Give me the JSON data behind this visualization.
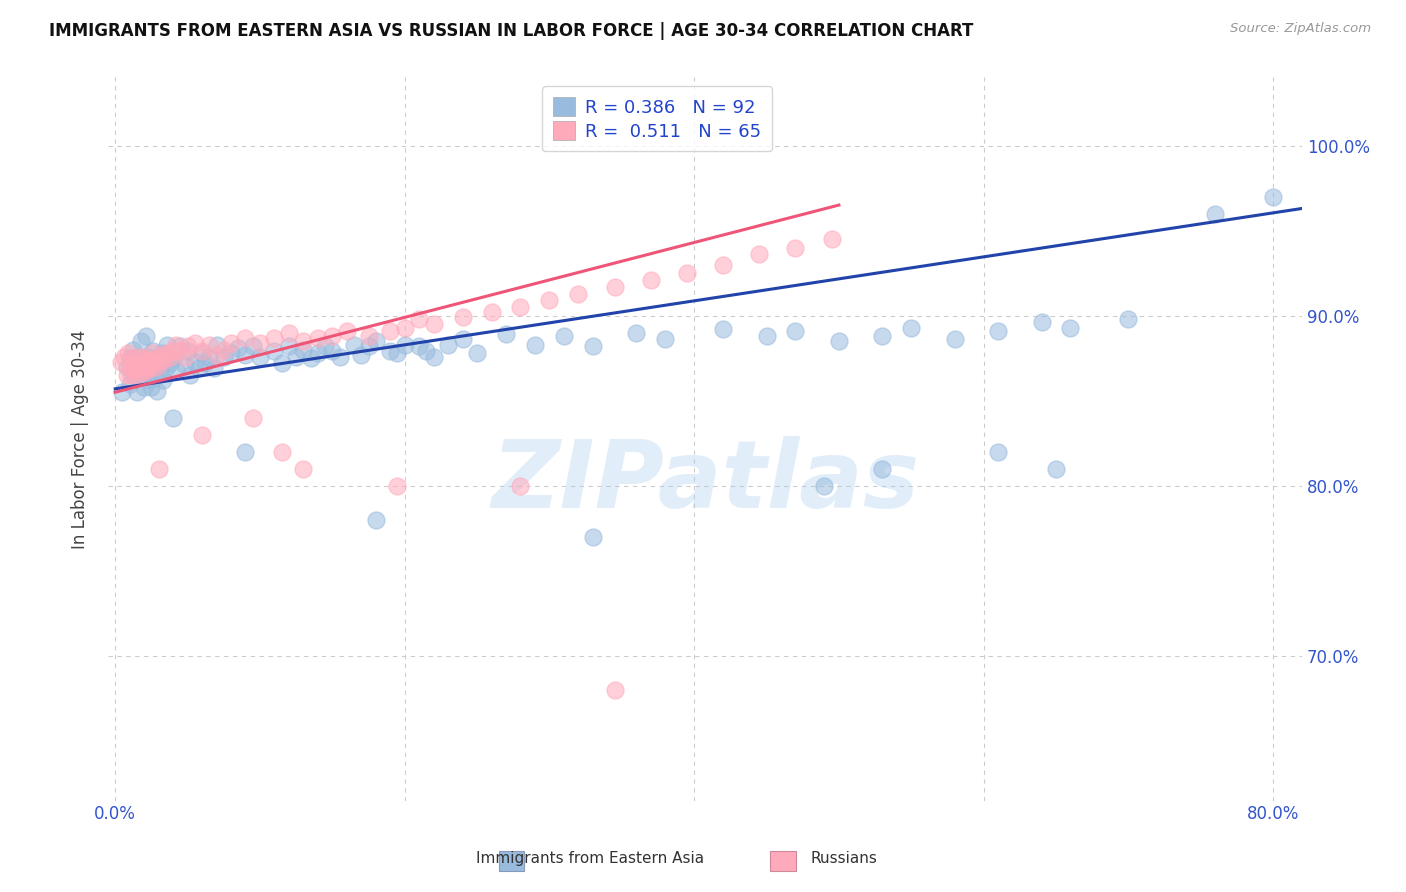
{
  "title": "IMMIGRANTS FROM EASTERN ASIA VS RUSSIAN IN LABOR FORCE | AGE 30-34 CORRELATION CHART",
  "source": "Source: ZipAtlas.com",
  "ylabel": "In Labor Force | Age 30-34",
  "xlim": [
    -0.005,
    0.82
  ],
  "ylim": [
    0.615,
    1.04
  ],
  "xtick_positions": [
    0.0,
    0.2,
    0.4,
    0.6,
    0.8
  ],
  "xtick_labels": [
    "0.0%",
    "",
    "",
    "",
    "80.0%"
  ],
  "ytick_positions": [
    0.7,
    0.8,
    0.9,
    1.0
  ],
  "ytick_labels": [
    "70.0%",
    "80.0%",
    "90.0%",
    "100.0%"
  ],
  "blue_R": 0.386,
  "blue_N": 92,
  "pink_R": 0.511,
  "pink_N": 65,
  "blue_color": "#99BBDD",
  "pink_color": "#FFAABB",
  "blue_line_color": "#2244AA",
  "pink_line_color": "#EE5577",
  "watermark": "ZIPatlas",
  "legend_blue_label": "Immigrants from Eastern Asia",
  "legend_pink_label": "Russians",
  "blue_x": [
    0.005,
    0.008,
    0.01,
    0.01,
    0.012,
    0.013,
    0.015,
    0.015,
    0.016,
    0.018,
    0.019,
    0.02,
    0.02,
    0.021,
    0.022,
    0.023,
    0.024,
    0.025,
    0.025,
    0.026,
    0.027,
    0.028,
    0.029,
    0.03,
    0.031,
    0.032,
    0.033,
    0.034,
    0.035,
    0.036,
    0.038,
    0.04,
    0.042,
    0.045,
    0.048,
    0.05,
    0.052,
    0.055,
    0.058,
    0.06,
    0.062,
    0.065,
    0.068,
    0.07,
    0.075,
    0.08,
    0.085,
    0.09,
    0.095,
    0.1,
    0.11,
    0.115,
    0.12,
    0.125,
    0.13,
    0.135,
    0.14,
    0.145,
    0.15,
    0.155,
    0.165,
    0.17,
    0.175,
    0.18,
    0.19,
    0.195,
    0.2,
    0.21,
    0.215,
    0.22,
    0.23,
    0.24,
    0.25,
    0.27,
    0.29,
    0.31,
    0.33,
    0.36,
    0.38,
    0.42,
    0.45,
    0.47,
    0.5,
    0.53,
    0.55,
    0.58,
    0.61,
    0.64,
    0.66,
    0.7,
    0.76,
    0.8
  ],
  "blue_y": [
    0.855,
    0.87,
    0.875,
    0.86,
    0.88,
    0.865,
    0.87,
    0.855,
    0.875,
    0.885,
    0.868,
    0.872,
    0.858,
    0.888,
    0.865,
    0.876,
    0.862,
    0.871,
    0.858,
    0.879,
    0.864,
    0.87,
    0.856,
    0.872,
    0.868,
    0.878,
    0.862,
    0.874,
    0.869,
    0.883,
    0.872,
    0.875,
    0.868,
    0.882,
    0.871,
    0.879,
    0.865,
    0.873,
    0.869,
    0.878,
    0.872,
    0.876,
    0.869,
    0.883,
    0.876,
    0.878,
    0.881,
    0.877,
    0.882,
    0.876,
    0.879,
    0.872,
    0.882,
    0.876,
    0.88,
    0.875,
    0.878,
    0.882,
    0.879,
    0.876,
    0.883,
    0.877,
    0.882,
    0.885,
    0.879,
    0.878,
    0.883,
    0.882,
    0.879,
    0.876,
    0.883,
    0.886,
    0.878,
    0.889,
    0.883,
    0.888,
    0.882,
    0.89,
    0.886,
    0.892,
    0.888,
    0.891,
    0.885,
    0.888,
    0.893,
    0.886,
    0.891,
    0.896,
    0.893,
    0.898,
    0.96,
    0.97
  ],
  "pink_x": [
    0.004,
    0.006,
    0.008,
    0.009,
    0.01,
    0.011,
    0.012,
    0.013,
    0.014,
    0.015,
    0.016,
    0.017,
    0.018,
    0.019,
    0.02,
    0.021,
    0.022,
    0.023,
    0.024,
    0.025,
    0.026,
    0.027,
    0.028,
    0.029,
    0.03,
    0.032,
    0.034,
    0.036,
    0.038,
    0.04,
    0.042,
    0.045,
    0.048,
    0.05,
    0.055,
    0.06,
    0.065,
    0.07,
    0.075,
    0.08,
    0.09,
    0.1,
    0.11,
    0.12,
    0.13,
    0.14,
    0.15,
    0.16,
    0.175,
    0.19,
    0.2,
    0.21,
    0.22,
    0.24,
    0.26,
    0.28,
    0.3,
    0.32,
    0.345,
    0.37,
    0.395,
    0.42,
    0.445,
    0.47,
    0.495
  ],
  "pink_y": [
    0.873,
    0.876,
    0.865,
    0.878,
    0.87,
    0.865,
    0.875,
    0.868,
    0.872,
    0.865,
    0.869,
    0.876,
    0.87,
    0.867,
    0.875,
    0.87,
    0.868,
    0.874,
    0.87,
    0.873,
    0.878,
    0.873,
    0.87,
    0.875,
    0.872,
    0.877,
    0.874,
    0.878,
    0.876,
    0.879,
    0.883,
    0.88,
    0.876,
    0.882,
    0.884,
    0.879,
    0.883,
    0.877,
    0.88,
    0.884,
    0.887,
    0.884,
    0.887,
    0.89,
    0.885,
    0.887,
    0.888,
    0.891,
    0.888,
    0.891,
    0.893,
    0.898,
    0.895,
    0.899,
    0.902,
    0.905,
    0.909,
    0.913,
    0.917,
    0.921,
    0.925,
    0.93,
    0.936,
    0.94,
    0.945
  ],
  "pink_outliers_x": [
    0.03,
    0.06,
    0.095,
    0.115,
    0.13,
    0.195,
    0.28,
    0.345
  ],
  "pink_outliers_y": [
    0.81,
    0.83,
    0.84,
    0.82,
    0.81,
    0.8,
    0.8,
    0.68
  ],
  "blue_outliers_x": [
    0.04,
    0.09,
    0.18,
    0.33,
    0.49,
    0.53,
    0.61,
    0.65
  ],
  "blue_outliers_y": [
    0.84,
    0.82,
    0.78,
    0.77,
    0.8,
    0.81,
    0.82,
    0.81
  ]
}
